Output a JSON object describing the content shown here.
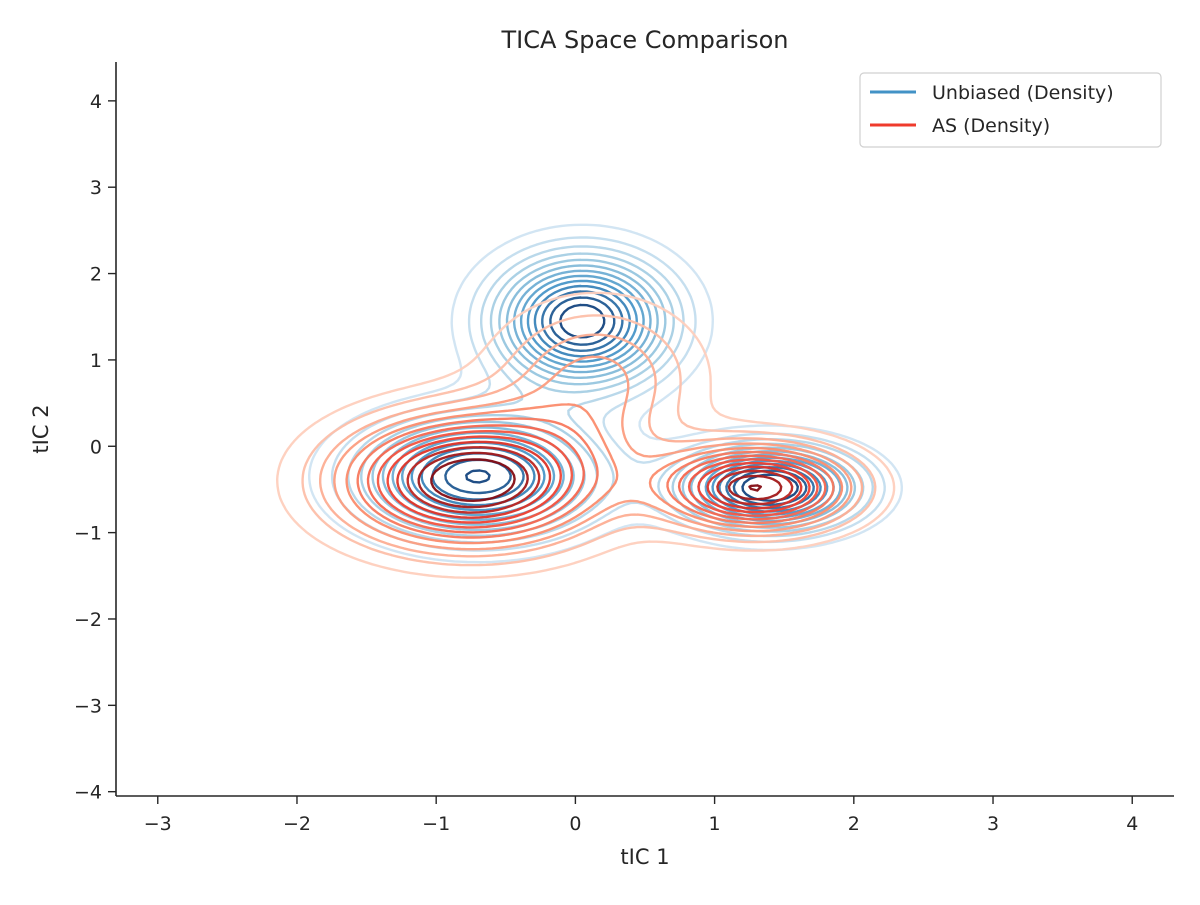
{
  "chart_data": {
    "type": "contour",
    "title": "TICA Space Comparison",
    "xlabel": "tIC 1",
    "ylabel": "tIC 2",
    "xlim": [
      -3.3,
      4.3
    ],
    "ylim": [
      -4.05,
      4.45
    ],
    "xticks": [
      -3,
      -2,
      -1,
      0,
      1,
      2,
      3,
      4
    ],
    "yticks": [
      -4,
      -3,
      -2,
      -1,
      0,
      1,
      2,
      3,
      4
    ],
    "xtick_labels": [
      "−3",
      "−2",
      "−1",
      "0",
      "1",
      "2",
      "3",
      "4"
    ],
    "ytick_labels": [
      "−4",
      "−3",
      "−2",
      "−1",
      "0",
      "1",
      "2",
      "3",
      "4"
    ],
    "grid": false,
    "legend_position": "top-right",
    "series": [
      {
        "name": "Unbiased (Density)",
        "color": "#4292c6",
        "colormap": [
          "#deebf7",
          "#9ecae1",
          "#4292c6",
          "#08306b"
        ],
        "components": [
          {
            "mean": [
              0.05,
              1.45
            ],
            "sd": [
              0.42,
              0.5
            ],
            "weight": 0.36
          },
          {
            "mean": [
              -0.7,
              -0.35
            ],
            "sd": [
              0.55,
              0.45
            ],
            "weight": 0.4
          },
          {
            "mean": [
              1.4,
              -0.48
            ],
            "sd": [
              0.42,
              0.32
            ],
            "weight": 0.24
          }
        ],
        "peaks": [
          {
            "x": 0.05,
            "y": 1.5
          },
          {
            "x": -0.7,
            "y": -0.35
          },
          {
            "x": 1.4,
            "y": -0.48
          }
        ]
      },
      {
        "name": "AS (Density)",
        "color": "#ef3b2c",
        "colormap": [
          "#fee0d2",
          "#fc9272",
          "#ef3b2c",
          "#67000d"
        ],
        "components": [
          {
            "mean": [
              -0.75,
              -0.4
            ],
            "sd": [
              0.62,
              0.5
            ],
            "weight": 0.58
          },
          {
            "mean": [
              0.15,
              0.8
            ],
            "sd": [
              0.5,
              0.6
            ],
            "weight": 0.17
          },
          {
            "mean": [
              1.3,
              -0.48
            ],
            "sd": [
              0.45,
              0.33
            ],
            "weight": 0.25
          }
        ],
        "peaks": [
          {
            "x": -0.75,
            "y": -0.4
          },
          {
            "x": 1.3,
            "y": -0.48
          }
        ]
      }
    ]
  }
}
